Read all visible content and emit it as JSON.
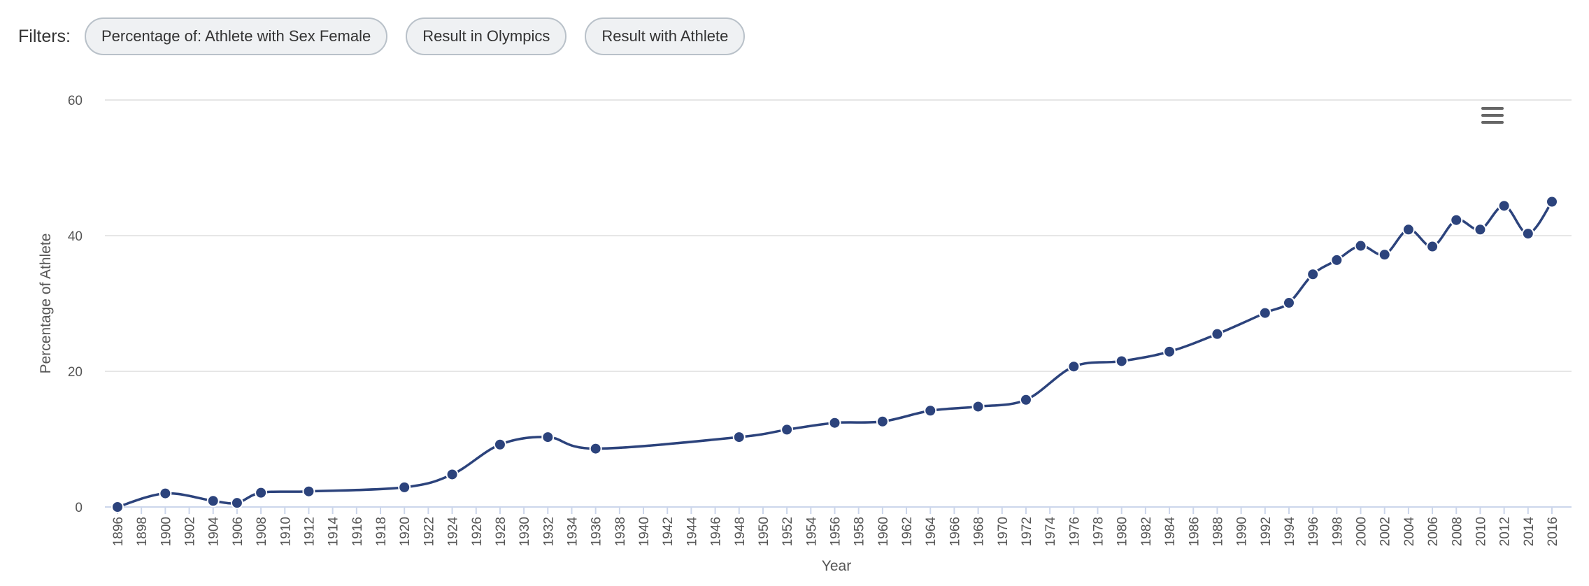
{
  "filters": {
    "label": "Filters:",
    "items": [
      "Percentage of: Athlete with Sex Female",
      "Result in Olympics",
      "Result with Athlete"
    ]
  },
  "menu_icon": "hamburger-menu-icon",
  "colors": {
    "series": "#2c437c",
    "grid": "#e6e6e6",
    "axis": "#ccd6eb"
  },
  "chart_data": {
    "type": "line",
    "title": "",
    "xlabel": "Year",
    "ylabel": "Percentage of Athlete",
    "ylim": [
      0,
      60
    ],
    "yticks": [
      0,
      20,
      40,
      60
    ],
    "xlim": [
      1896,
      2016
    ],
    "xtick_step": 2,
    "grid": true,
    "smooth": true,
    "series": [
      {
        "name": "Percentage of Athlete",
        "x": [
          1896,
          1900,
          1904,
          1906,
          1908,
          1912,
          1920,
          1924,
          1928,
          1932,
          1936,
          1948,
          1952,
          1956,
          1960,
          1964,
          1968,
          1972,
          1976,
          1980,
          1984,
          1988,
          1992,
          1994,
          1996,
          1998,
          2000,
          2002,
          2004,
          2006,
          2008,
          2010,
          2012,
          2014,
          2016
        ],
        "values": [
          0.0,
          2.0,
          0.9,
          0.6,
          2.1,
          2.3,
          2.9,
          4.8,
          9.2,
          10.3,
          8.6,
          10.3,
          11.4,
          12.4,
          12.6,
          14.2,
          14.8,
          15.8,
          20.7,
          21.5,
          22.9,
          25.5,
          28.6,
          30.1,
          34.3,
          36.4,
          38.5,
          37.2,
          40.9,
          38.4,
          42.3,
          40.9,
          44.4,
          40.3,
          45.0
        ]
      }
    ]
  }
}
